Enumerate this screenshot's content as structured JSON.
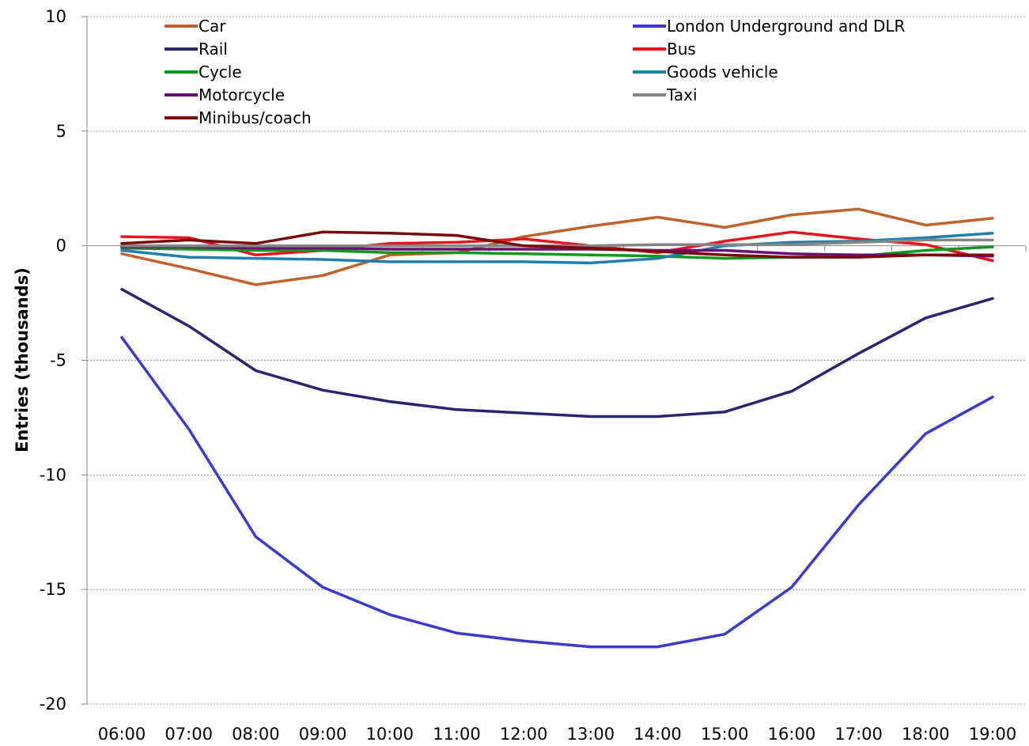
{
  "chart_data": {
    "type": "line",
    "title": "",
    "xlabel": "",
    "ylabel": "Entries (thousands)",
    "ylim": [
      -20,
      10
    ],
    "yticks": [
      "10",
      "5",
      "0",
      "-5",
      "-10",
      "-15",
      "-20"
    ],
    "ytick_values": [
      10,
      5,
      0,
      -5,
      -10,
      -15,
      -20
    ],
    "grid": true,
    "legend_position": "top",
    "categories": [
      "06:00",
      "07:00",
      "08:00",
      "09:00",
      "10:00",
      "11:00",
      "12:00",
      "13:00",
      "14:00",
      "15:00",
      "16:00",
      "17:00",
      "18:00",
      "19:00"
    ],
    "series": [
      {
        "name": "Car",
        "color": "#C0632A",
        "values": [
          -0.35,
          -1.0,
          -1.7,
          -1.3,
          -0.4,
          -0.3,
          0.4,
          0.85,
          1.25,
          0.8,
          1.35,
          1.6,
          0.9,
          1.2
        ]
      },
      {
        "name": "London Underground and DLR",
        "color": "#3A3ACC",
        "values": [
          -4.0,
          -8.0,
          -12.7,
          -14.9,
          -16.1,
          -16.9,
          -17.25,
          -17.5,
          -17.5,
          -16.95,
          -14.9,
          -11.3,
          -8.2,
          -6.6
        ]
      },
      {
        "name": "Rail",
        "color": "#2B2470",
        "values": [
          -1.9,
          -3.5,
          -5.45,
          -6.3,
          -6.8,
          -7.15,
          -7.3,
          -7.45,
          -7.45,
          -7.25,
          -6.35,
          -4.7,
          -3.15,
          -2.3
        ]
      },
      {
        "name": "Bus",
        "color": "#E8141B",
        "values": [
          0.4,
          0.35,
          -0.4,
          -0.2,
          0.1,
          0.15,
          0.3,
          0.0,
          -0.3,
          0.2,
          0.6,
          0.3,
          0.05,
          -0.65
        ]
      },
      {
        "name": "Cycle",
        "color": "#0C9A1C",
        "values": [
          -0.1,
          -0.15,
          -0.2,
          -0.2,
          -0.3,
          -0.3,
          -0.35,
          -0.4,
          -0.45,
          -0.55,
          -0.5,
          -0.45,
          -0.2,
          -0.05
        ]
      },
      {
        "name": "Goods vehicle",
        "color": "#1F7FAE",
        "values": [
          -0.2,
          -0.5,
          -0.55,
          -0.6,
          -0.7,
          -0.7,
          -0.7,
          -0.75,
          -0.55,
          0.0,
          0.15,
          0.2,
          0.35,
          0.55
        ]
      },
      {
        "name": "Motorcycle",
        "color": "#6B0F73",
        "values": [
          -0.05,
          -0.05,
          -0.1,
          -0.1,
          -0.15,
          -0.15,
          -0.15,
          -0.15,
          -0.2,
          -0.2,
          -0.35,
          -0.4,
          -0.4,
          -0.45
        ]
      },
      {
        "name": "Taxi",
        "color": "#858585",
        "values": [
          0.0,
          0.0,
          0.0,
          0.0,
          0.0,
          0.0,
          0.0,
          0.0,
          0.05,
          0.05,
          0.05,
          0.15,
          0.25,
          0.25
        ]
      },
      {
        "name": "Minibus/coach",
        "color": "#7D0A0A",
        "values": [
          0.1,
          0.25,
          0.1,
          0.6,
          0.55,
          0.45,
          0.0,
          -0.1,
          -0.25,
          -0.4,
          -0.5,
          -0.5,
          -0.4,
          -0.4
        ]
      }
    ]
  }
}
